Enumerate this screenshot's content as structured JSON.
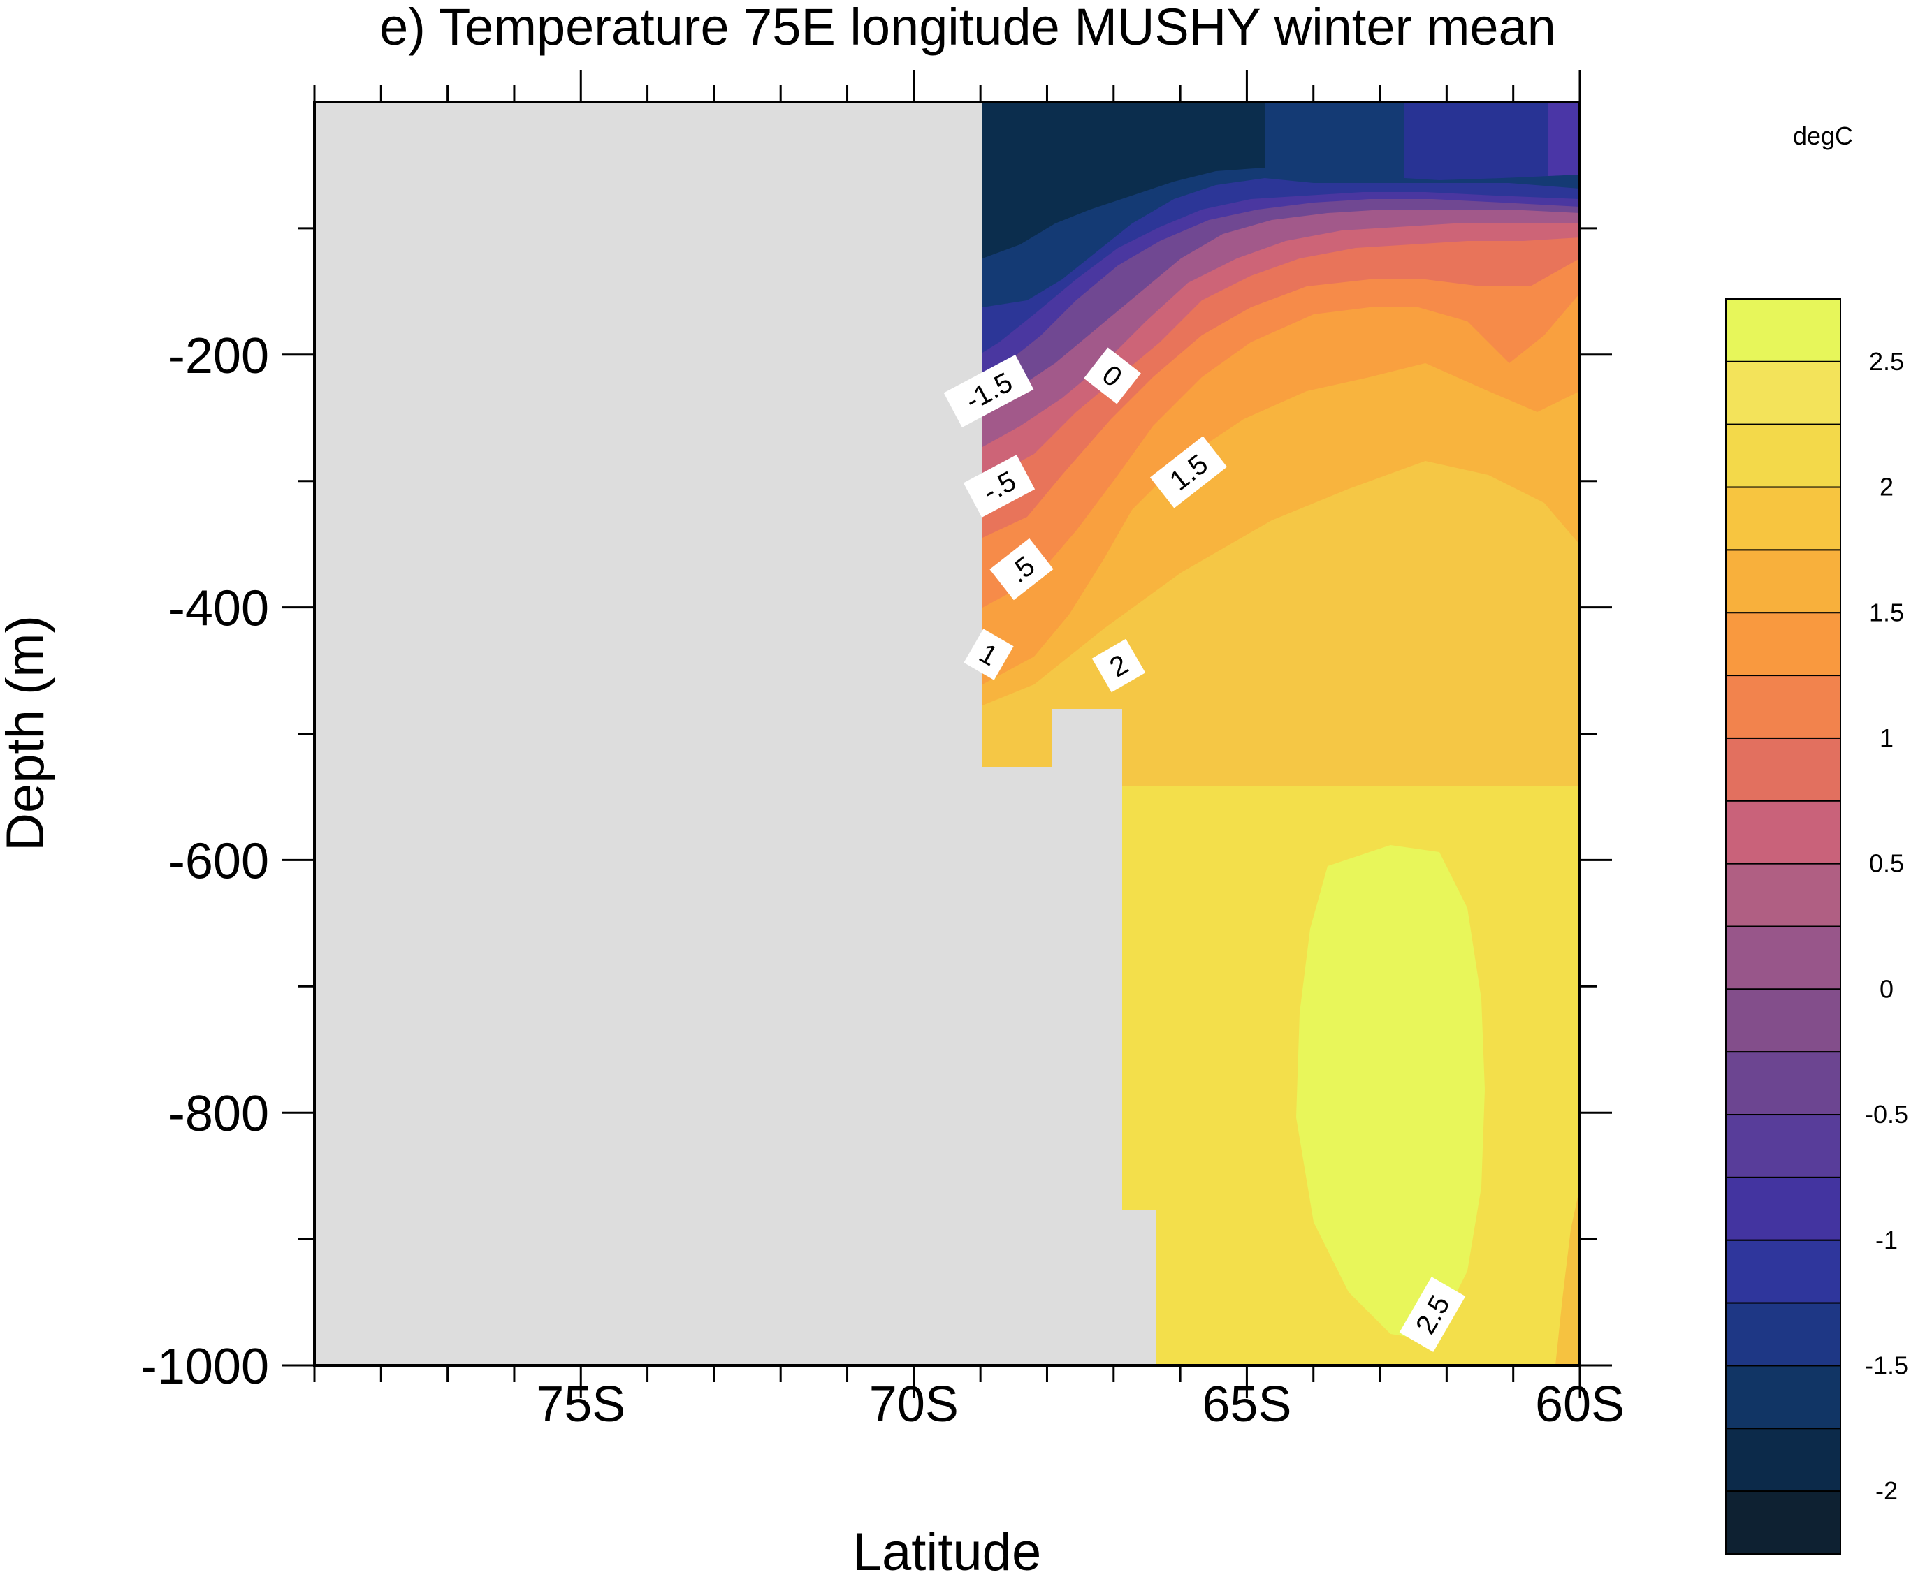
{
  "chart_data": {
    "type": "contour",
    "title": "e) Temperature 75E longitude MUSHY winter mean",
    "xlabel": "Latitude",
    "ylabel": "Depth (m)",
    "units": "degC",
    "x_ticks": [
      "75S",
      "70S",
      "65S",
      "60S"
    ],
    "x_tick_values": [
      -75,
      -70,
      -65,
      -60
    ],
    "xlim": [
      -79,
      -60
    ],
    "y_ticks": [
      "-200",
      "-400",
      "-600",
      "-800",
      "-1000"
    ],
    "y_tick_values": [
      -200,
      -400,
      -600,
      -800,
      -1000
    ],
    "ylim": [
      -1000,
      0
    ],
    "colorbar": {
      "labels": [
        "2.5",
        "2",
        "1.5",
        "1",
        "0.5",
        "0",
        "-0.5",
        "-1",
        "-1.5",
        "-2"
      ],
      "levels": [
        -2.25,
        -2,
        -1.75,
        -1.5,
        -1.25,
        -1,
        -0.75,
        -0.5,
        -0.25,
        0,
        0.25,
        0.5,
        0.75,
        1,
        1.25,
        1.5,
        1.75,
        2,
        2.25,
        2.5
      ],
      "colors": [
        "#0e2132",
        "#0c2a4a",
        "#113565",
        "#1e3785",
        "#2f369c",
        "#4334a0",
        "#583d9a",
        "#6c4591",
        "#834e8b",
        "#98568a",
        "#b05f83",
        "#c9627a",
        "#e2705f",
        "#f2834d",
        "#f9993f",
        "#f8b03c",
        "#f7c540",
        "#f3d94a",
        "#f3e35a",
        "#e7f65a"
      ]
    },
    "contour_labels": [
      "-1.5",
      "0",
      "-.5",
      "1.5",
      ".5",
      "1",
      "2",
      "2.5"
    ],
    "land_color": "#dddddd"
  }
}
